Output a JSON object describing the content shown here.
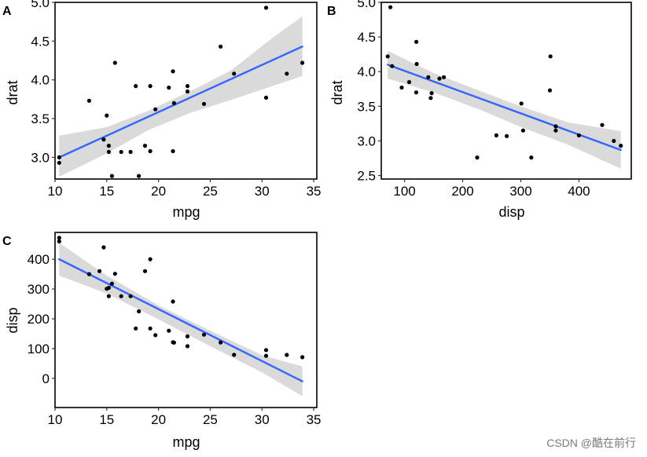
{
  "watermark": "CSDN @酷在前行",
  "colors": {
    "point": "#000000",
    "line": "#3366FF",
    "band": "#D3D3D3",
    "frame": "#000000"
  },
  "chart_data": [
    {
      "id": "A",
      "type": "scatter",
      "tag": "A",
      "title": "",
      "xlabel": "mpg",
      "ylabel": "drat",
      "xlim": [
        10,
        35.3
      ],
      "ylim": [
        2.72,
        5.0
      ],
      "xticks": [
        10,
        15,
        20,
        25,
        30,
        35
      ],
      "yticks": [
        3.0,
        3.5,
        4.0,
        4.5,
        5.0
      ],
      "ytick_labels": [
        "3.0",
        "3.5",
        "4.0",
        "4.5",
        "5.0"
      ],
      "points": [
        {
          "x": 10.4,
          "y": 2.93
        },
        {
          "x": 10.4,
          "y": 3.0
        },
        {
          "x": 13.3,
          "y": 3.73
        },
        {
          "x": 14.7,
          "y": 3.23
        },
        {
          "x": 15.0,
          "y": 3.54
        },
        {
          "x": 15.2,
          "y": 3.07
        },
        {
          "x": 15.2,
          "y": 3.15
        },
        {
          "x": 15.5,
          "y": 2.76
        },
        {
          "x": 15.8,
          "y": 4.22
        },
        {
          "x": 16.4,
          "y": 3.07
        },
        {
          "x": 17.3,
          "y": 3.07
        },
        {
          "x": 17.8,
          "y": 3.92
        },
        {
          "x": 18.1,
          "y": 2.76
        },
        {
          "x": 18.7,
          "y": 3.15
        },
        {
          "x": 19.2,
          "y": 3.92
        },
        {
          "x": 19.2,
          "y": 3.08
        },
        {
          "x": 19.7,
          "y": 3.62
        },
        {
          "x": 21.0,
          "y": 3.9
        },
        {
          "x": 21.4,
          "y": 4.11
        },
        {
          "x": 21.4,
          "y": 3.08
        },
        {
          "x": 21.5,
          "y": 3.7
        },
        {
          "x": 22.8,
          "y": 3.85
        },
        {
          "x": 22.8,
          "y": 3.92
        },
        {
          "x": 24.4,
          "y": 3.69
        },
        {
          "x": 26.0,
          "y": 4.43
        },
        {
          "x": 27.3,
          "y": 4.08
        },
        {
          "x": 30.4,
          "y": 4.93
        },
        {
          "x": 30.4,
          "y": 3.77
        },
        {
          "x": 32.4,
          "y": 4.08
        },
        {
          "x": 33.9,
          "y": 4.22
        }
      ],
      "fit_line": {
        "x": [
          10.4,
          33.9
        ],
        "y": [
          3.0,
          4.43
        ]
      },
      "confidence_band": {
        "x": [
          10.4,
          15,
          19,
          23,
          27,
          31,
          33.9
        ],
        "lower": [
          2.75,
          3.05,
          3.35,
          3.57,
          3.74,
          3.92,
          4.05
        ],
        "upper": [
          3.28,
          3.39,
          3.6,
          3.85,
          4.12,
          4.54,
          4.82
        ]
      }
    },
    {
      "id": "B",
      "type": "scatter",
      "tag": "B",
      "title": "",
      "xlabel": "disp",
      "ylabel": "drat",
      "xlim": [
        60,
        490
      ],
      "ylim": [
        2.45,
        5.0
      ],
      "xticks": [
        100,
        200,
        300,
        400
      ],
      "yticks": [
        2.5,
        3.0,
        3.5,
        4.0,
        4.5,
        5.0
      ],
      "ytick_labels": [
        "2.5",
        "3.0",
        "3.5",
        "4.0",
        "4.5",
        "5.0"
      ],
      "points": [
        {
          "x": 71.1,
          "y": 4.22
        },
        {
          "x": 75.7,
          "y": 4.93
        },
        {
          "x": 78.7,
          "y": 4.08
        },
        {
          "x": 95.1,
          "y": 3.77
        },
        {
          "x": 108.0,
          "y": 3.85
        },
        {
          "x": 120.1,
          "y": 3.7
        },
        {
          "x": 120.3,
          "y": 4.43
        },
        {
          "x": 121.0,
          "y": 4.11
        },
        {
          "x": 140.8,
          "y": 3.92
        },
        {
          "x": 145.0,
          "y": 3.62
        },
        {
          "x": 146.7,
          "y": 3.69
        },
        {
          "x": 160.0,
          "y": 3.9
        },
        {
          "x": 167.6,
          "y": 3.92
        },
        {
          "x": 225.0,
          "y": 2.76
        },
        {
          "x": 258.0,
          "y": 3.08
        },
        {
          "x": 275.8,
          "y": 3.07
        },
        {
          "x": 301.0,
          "y": 3.54
        },
        {
          "x": 304.0,
          "y": 3.15
        },
        {
          "x": 318.0,
          "y": 2.76
        },
        {
          "x": 350.0,
          "y": 3.73
        },
        {
          "x": 351.0,
          "y": 4.22
        },
        {
          "x": 360.0,
          "y": 3.15
        },
        {
          "x": 360.0,
          "y": 3.21
        },
        {
          "x": 400.0,
          "y": 3.08
        },
        {
          "x": 440.0,
          "y": 3.23
        },
        {
          "x": 460.0,
          "y": 3.0
        },
        {
          "x": 472.0,
          "y": 2.93
        }
      ],
      "fit_line": {
        "x": [
          71.1,
          472.0
        ],
        "y": [
          4.1,
          2.87
        ]
      },
      "confidence_band": {
        "x": [
          71.1,
          150,
          230,
          300,
          380,
          472
        ],
        "lower": [
          3.9,
          3.7,
          3.45,
          3.2,
          2.95,
          2.6
        ],
        "upper": [
          4.3,
          3.98,
          3.72,
          3.5,
          3.27,
          3.14
        ]
      }
    },
    {
      "id": "C",
      "type": "scatter",
      "tag": "C",
      "title": "",
      "xlabel": "mpg",
      "ylabel": "disp",
      "xlim": [
        10,
        35.3
      ],
      "ylim": [
        -98,
        490
      ],
      "xticks": [
        10,
        15,
        20,
        25,
        30,
        35
      ],
      "yticks": [
        0,
        100,
        200,
        300,
        400
      ],
      "ytick_labels": [
        "0",
        "100",
        "200",
        "300",
        "400"
      ],
      "points": [
        {
          "x": 10.4,
          "y": 472.0
        },
        {
          "x": 10.4,
          "y": 460.0
        },
        {
          "x": 13.3,
          "y": 350.0
        },
        {
          "x": 14.3,
          "y": 360.0
        },
        {
          "x": 14.7,
          "y": 440.0
        },
        {
          "x": 15.0,
          "y": 301.0
        },
        {
          "x": 15.2,
          "y": 275.8
        },
        {
          "x": 15.2,
          "y": 304.0
        },
        {
          "x": 15.5,
          "y": 318.0
        },
        {
          "x": 15.8,
          "y": 351.0
        },
        {
          "x": 16.4,
          "y": 275.8
        },
        {
          "x": 17.3,
          "y": 275.8
        },
        {
          "x": 17.8,
          "y": 167.6
        },
        {
          "x": 18.1,
          "y": 225.0
        },
        {
          "x": 18.7,
          "y": 360.0
        },
        {
          "x": 19.2,
          "y": 400.0
        },
        {
          "x": 19.2,
          "y": 167.6
        },
        {
          "x": 19.7,
          "y": 145.0
        },
        {
          "x": 21.0,
          "y": 160.0
        },
        {
          "x": 21.4,
          "y": 258.0
        },
        {
          "x": 21.4,
          "y": 121.0
        },
        {
          "x": 21.5,
          "y": 120.1
        },
        {
          "x": 22.8,
          "y": 108.0
        },
        {
          "x": 22.8,
          "y": 140.8
        },
        {
          "x": 24.4,
          "y": 146.7
        },
        {
          "x": 26.0,
          "y": 120.3
        },
        {
          "x": 27.3,
          "y": 79.0
        },
        {
          "x": 30.4,
          "y": 95.1
        },
        {
          "x": 30.4,
          "y": 75.7
        },
        {
          "x": 32.4,
          "y": 78.7
        },
        {
          "x": 33.9,
          "y": 71.1
        }
      ],
      "fit_line": {
        "x": [
          10.4,
          33.9
        ],
        "y": [
          400.0,
          -10.0
        ]
      },
      "confidence_band": {
        "x": [
          10.4,
          15,
          20,
          25,
          30,
          33.9
        ],
        "lower": [
          345,
          285,
          198,
          108,
          20,
          -60
        ],
        "upper": [
          455,
          345,
          245,
          160,
          78,
          40
        ]
      }
    }
  ]
}
